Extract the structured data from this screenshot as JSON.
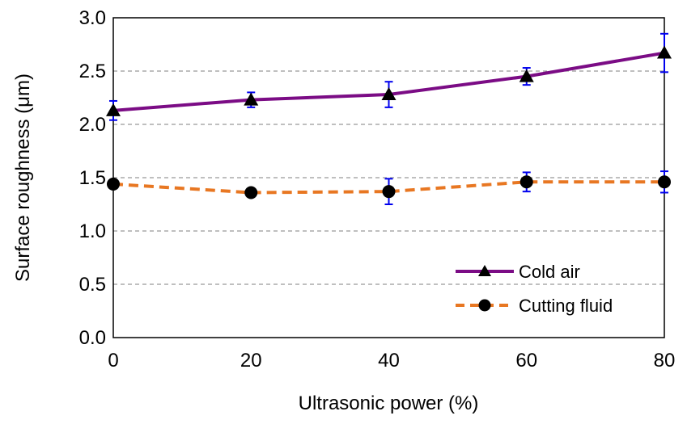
{
  "chart_data": {
    "type": "line",
    "title": "",
    "xlabel": "Ultrasonic power (%)",
    "ylabel": "Surface roughness (μm)",
    "x": [
      0,
      20,
      40,
      60,
      80
    ],
    "xlim": [
      0,
      80
    ],
    "ylim": [
      0,
      3
    ],
    "xticks": [
      "0",
      "20",
      "40",
      "60",
      "80"
    ],
    "yticks": [
      "0.0",
      "0.5",
      "1.0",
      "1.5",
      "2.0",
      "2.5",
      "3.0"
    ],
    "grid": "horizontal dashed",
    "legend_position": "lower-right",
    "series": [
      {
        "name": "Cold air",
        "values": [
          2.13,
          2.23,
          2.28,
          2.45,
          2.67
        ],
        "error": [
          0.09,
          0.07,
          0.12,
          0.08,
          0.18
        ],
        "color": "#7B0C85",
        "marker": "triangle",
        "line_style": "solid"
      },
      {
        "name": "Cutting fluid",
        "values": [
          1.44,
          1.36,
          1.37,
          1.46,
          1.46
        ],
        "error": [
          0.04,
          0.03,
          0.12,
          0.09,
          0.1
        ],
        "color": "#E87722",
        "marker": "circle",
        "line_style": "dashed"
      }
    ],
    "error_bar_color": "#0000EE"
  }
}
